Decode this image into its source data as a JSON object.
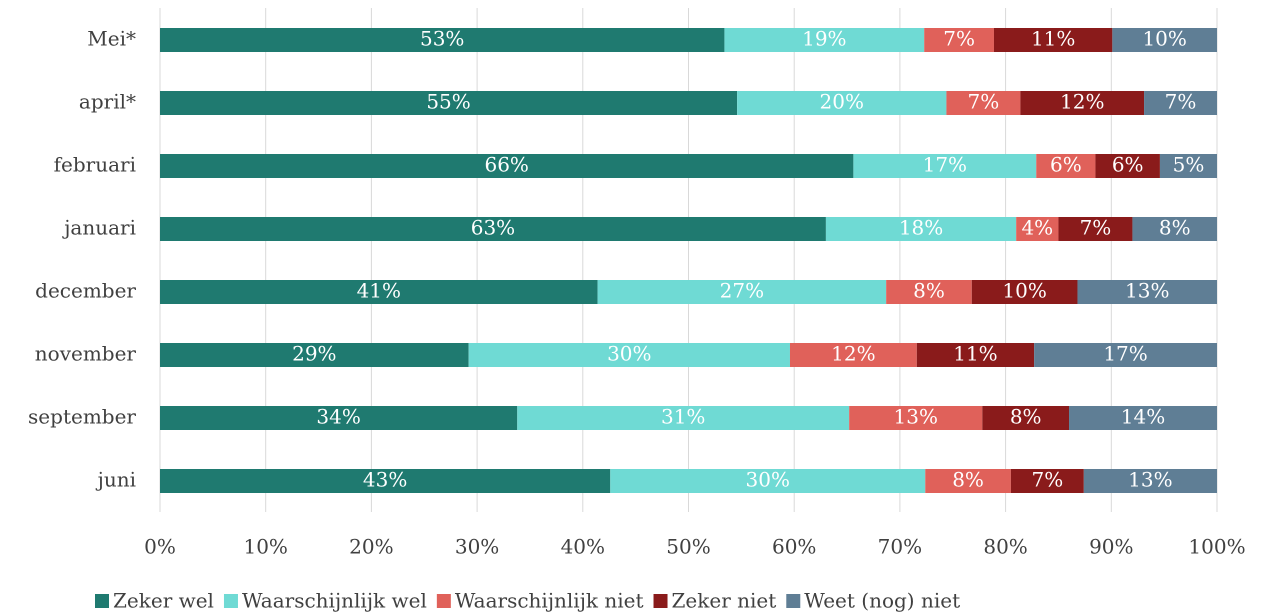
{
  "chart_data": {
    "type": "stacked-bar-horizontal",
    "categories": [
      "Mei*",
      "april*",
      "februari",
      "januari",
      "december",
      "november",
      "september",
      "juni"
    ],
    "series": [
      {
        "name": "Zeker wel",
        "color": "#1f7a70",
        "values": [
          53.4,
          54.6,
          65.6,
          63.0,
          41.4,
          29.2,
          33.8,
          42.6
        ],
        "value_labels": [
          "53%",
          "55%",
          "66%",
          "63%",
          "41%",
          "29%",
          "34%",
          "43%"
        ]
      },
      {
        "name": "Waarschijnlijk wel",
        "color": "#6fdad4",
        "values": [
          18.9,
          19.8,
          17.3,
          18.0,
          27.3,
          30.4,
          31.4,
          29.8
        ],
        "value_labels": [
          "19%",
          "20%",
          "17%",
          "18%",
          "27%",
          "30%",
          "31%",
          "30%"
        ]
      },
      {
        "name": "Waarschijnlijk niet",
        "color": "#e0615a",
        "values": [
          6.6,
          7.0,
          5.6,
          4.0,
          8.1,
          12.0,
          12.6,
          8.1
        ],
        "value_labels": [
          "7%",
          "7%",
          "6%",
          "4%",
          "8%",
          "12%",
          "13%",
          "8%"
        ]
      },
      {
        "name": "Zeker niet",
        "color": "#8a1b1b",
        "values": [
          11.2,
          11.7,
          6.1,
          7.0,
          10.0,
          11.1,
          8.2,
          6.9
        ],
        "value_labels": [
          "11%",
          "12%",
          "6%",
          "7%",
          "10%",
          "11%",
          "8%",
          "7%"
        ]
      },
      {
        "name": "Weet (nog) niet",
        "color": "#5f7e95",
        "values": [
          9.9,
          6.9,
          5.4,
          8.0,
          13.2,
          17.3,
          14.0,
          12.6
        ],
        "value_labels": [
          "10%",
          "7%",
          "5%",
          "8%",
          "13%",
          "17%",
          "14%",
          "13%"
        ]
      }
    ],
    "xlim": [
      0,
      100
    ],
    "xticks": [
      {
        "value": 0,
        "label": "0%"
      },
      {
        "value": 10,
        "label": "10%"
      },
      {
        "value": 20,
        "label": "20%"
      },
      {
        "value": 30,
        "label": "30%"
      },
      {
        "value": 40,
        "label": "40%"
      },
      {
        "value": 50,
        "label": "50%"
      },
      {
        "value": 60,
        "label": "60%"
      },
      {
        "value": 70,
        "label": "70%"
      },
      {
        "value": 80,
        "label": "80%"
      },
      {
        "value": 90,
        "label": "90%"
      },
      {
        "value": 100,
        "label": "100%"
      }
    ],
    "grid": true,
    "legend": "bottom"
  }
}
